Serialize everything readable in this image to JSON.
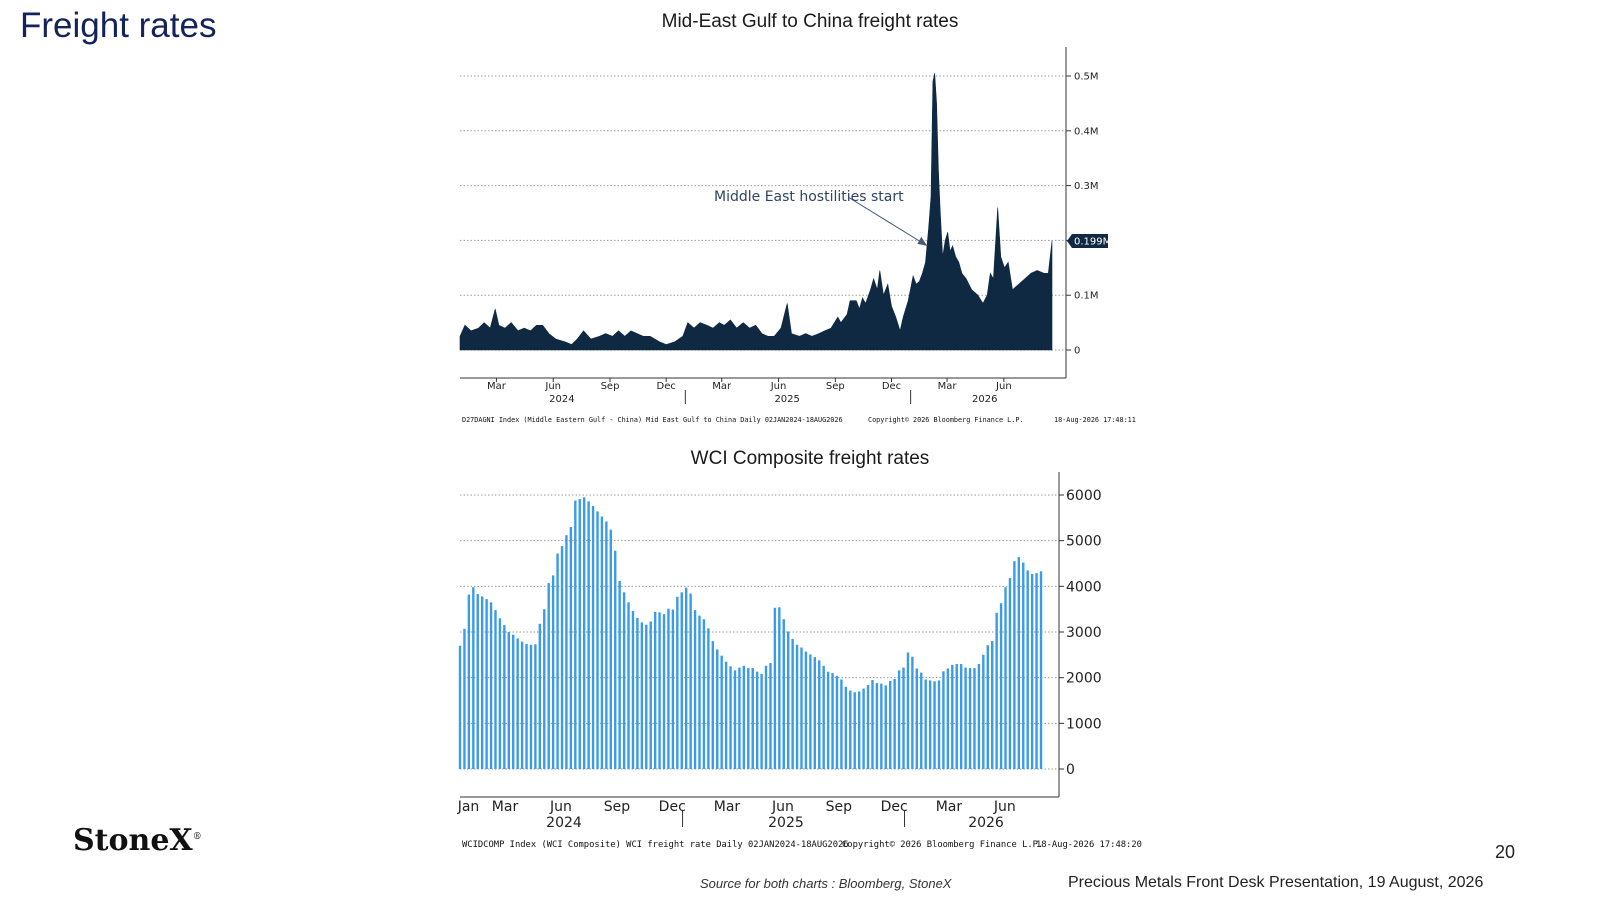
{
  "page": {
    "title": "Freight rates",
    "page_number": "20",
    "source_note": "Source for both charts : Bloomberg, StoneX",
    "footer": "Precious Metals Front Desk Presentation, 19 August, 2026",
    "logo_text": "StoneX",
    "logo_mark": "®"
  },
  "colors": {
    "title": "#14235c",
    "chart1_area": "#0f2942",
    "chart2_bars": "#3b9be6",
    "grid": "#9a9a9a",
    "annotation": "#4a5a70"
  },
  "chart_data": [
    {
      "type": "area",
      "title": "Mid-East Gulf to China freight rates",
      "xlabel": "",
      "ylabel": "",
      "ylim": [
        0,
        0.5
      ],
      "unit": "M",
      "grid": true,
      "y_axis_side": "right",
      "y_ticks": [
        0,
        0.1,
        0.2,
        0.3,
        0.4,
        0.5
      ],
      "y_tick_labels": [
        "0",
        "0.1M",
        "",
        "0.3M",
        "0.4M",
        "0.5M"
      ],
      "last_value_label": "0.199M",
      "last_value": 0.199,
      "x_range": [
        "2024-01-02",
        "2026-08-18"
      ],
      "x_ticks": [
        {
          "date": "2024-03-01",
          "label": "Mar"
        },
        {
          "date": "2024-06-01",
          "label": "Jun"
        },
        {
          "date": "2024-09-01",
          "label": "Sep"
        },
        {
          "date": "2024-12-01",
          "label": "Dec"
        },
        {
          "date": "2025-03-01",
          "label": "Mar"
        },
        {
          "date": "2025-06-01",
          "label": "Jun"
        },
        {
          "date": "2025-09-01",
          "label": "Sep"
        },
        {
          "date": "2025-12-01",
          "label": "Dec"
        },
        {
          "date": "2026-03-01",
          "label": "Mar"
        },
        {
          "date": "2026-06-01",
          "label": "Jun"
        }
      ],
      "year_labels": [
        {
          "date": "2024-06-15",
          "label": "2024"
        },
        {
          "date": "2025-06-15",
          "label": "2025"
        },
        {
          "date": "2026-05-01",
          "label": "2026"
        }
      ],
      "year_separators": [
        "2025-01-01",
        "2026-01-01"
      ],
      "points": [
        [
          "2024-01-02",
          0.025
        ],
        [
          "2024-01-10",
          0.045
        ],
        [
          "2024-01-20",
          0.035
        ],
        [
          "2024-02-01",
          0.04
        ],
        [
          "2024-02-10",
          0.05
        ],
        [
          "2024-02-20",
          0.04
        ],
        [
          "2024-02-28",
          0.075
        ],
        [
          "2024-03-05",
          0.045
        ],
        [
          "2024-03-15",
          0.04
        ],
        [
          "2024-03-25",
          0.05
        ],
        [
          "2024-04-05",
          0.035
        ],
        [
          "2024-04-15",
          0.04
        ],
        [
          "2024-04-25",
          0.035
        ],
        [
          "2024-05-05",
          0.045
        ],
        [
          "2024-05-15",
          0.045
        ],
        [
          "2024-05-25",
          0.03
        ],
        [
          "2024-06-05",
          0.02
        ],
        [
          "2024-06-20",
          0.015
        ],
        [
          "2024-07-01",
          0.01
        ],
        [
          "2024-07-10",
          0.02
        ],
        [
          "2024-07-20",
          0.035
        ],
        [
          "2024-08-01",
          0.02
        ],
        [
          "2024-08-15",
          0.025
        ],
        [
          "2024-08-25",
          0.03
        ],
        [
          "2024-09-05",
          0.025
        ],
        [
          "2024-09-15",
          0.035
        ],
        [
          "2024-09-25",
          0.025
        ],
        [
          "2024-10-05",
          0.035
        ],
        [
          "2024-10-15",
          0.03
        ],
        [
          "2024-10-25",
          0.025
        ],
        [
          "2024-11-05",
          0.025
        ],
        [
          "2024-11-20",
          0.015
        ],
        [
          "2024-12-01",
          0.01
        ],
        [
          "2024-12-15",
          0.015
        ],
        [
          "2024-12-28",
          0.025
        ],
        [
          "2025-01-05",
          0.05
        ],
        [
          "2025-01-15",
          0.04
        ],
        [
          "2025-01-25",
          0.05
        ],
        [
          "2025-02-05",
          0.045
        ],
        [
          "2025-02-15",
          0.04
        ],
        [
          "2025-02-25",
          0.05
        ],
        [
          "2025-03-05",
          0.045
        ],
        [
          "2025-03-15",
          0.055
        ],
        [
          "2025-03-25",
          0.04
        ],
        [
          "2025-04-05",
          0.05
        ],
        [
          "2025-04-15",
          0.04
        ],
        [
          "2025-04-25",
          0.045
        ],
        [
          "2025-05-05",
          0.03
        ],
        [
          "2025-05-15",
          0.025
        ],
        [
          "2025-05-25",
          0.025
        ],
        [
          "2025-06-05",
          0.04
        ],
        [
          "2025-06-15",
          0.085
        ],
        [
          "2025-06-22",
          0.03
        ],
        [
          "2025-07-05",
          0.025
        ],
        [
          "2025-07-15",
          0.03
        ],
        [
          "2025-07-25",
          0.025
        ],
        [
          "2025-08-05",
          0.03
        ],
        [
          "2025-08-15",
          0.035
        ],
        [
          "2025-08-25",
          0.04
        ],
        [
          "2025-09-05",
          0.06
        ],
        [
          "2025-09-10",
          0.05
        ],
        [
          "2025-09-20",
          0.065
        ],
        [
          "2025-09-25",
          0.09
        ],
        [
          "2025-10-05",
          0.09
        ],
        [
          "2025-10-10",
          0.075
        ],
        [
          "2025-10-15",
          0.095
        ],
        [
          "2025-10-20",
          0.085
        ],
        [
          "2025-10-28",
          0.11
        ],
        [
          "2025-11-02",
          0.13
        ],
        [
          "2025-11-08",
          0.11
        ],
        [
          "2025-11-12",
          0.145
        ],
        [
          "2025-11-18",
          0.1
        ],
        [
          "2025-11-25",
          0.12
        ],
        [
          "2025-12-01",
          0.08
        ],
        [
          "2025-12-08",
          0.06
        ],
        [
          "2025-12-15",
          0.035
        ],
        [
          "2025-12-20",
          0.06
        ],
        [
          "2025-12-28",
          0.09
        ],
        [
          "2026-01-05",
          0.135
        ],
        [
          "2026-01-10",
          0.12
        ],
        [
          "2026-01-15",
          0.125
        ],
        [
          "2026-01-20",
          0.14
        ],
        [
          "2026-01-25",
          0.16
        ],
        [
          "2026-01-30",
          0.22
        ],
        [
          "2026-02-03",
          0.28
        ],
        [
          "2026-02-06",
          0.49
        ],
        [
          "2026-02-09",
          0.505
        ],
        [
          "2026-02-12",
          0.45
        ],
        [
          "2026-02-15",
          0.33
        ],
        [
          "2026-02-18",
          0.25
        ],
        [
          "2026-02-22",
          0.17
        ],
        [
          "2026-02-26",
          0.2
        ],
        [
          "2026-03-02",
          0.215
        ],
        [
          "2026-03-06",
          0.18
        ],
        [
          "2026-03-10",
          0.19
        ],
        [
          "2026-03-15",
          0.17
        ],
        [
          "2026-03-20",
          0.16
        ],
        [
          "2026-03-25",
          0.14
        ],
        [
          "2026-04-01",
          0.13
        ],
        [
          "2026-04-10",
          0.11
        ],
        [
          "2026-04-20",
          0.1
        ],
        [
          "2026-04-28",
          0.085
        ],
        [
          "2026-05-05",
          0.1
        ],
        [
          "2026-05-10",
          0.14
        ],
        [
          "2026-05-15",
          0.13
        ],
        [
          "2026-05-22",
          0.26
        ],
        [
          "2026-05-27",
          0.17
        ],
        [
          "2026-06-02",
          0.15
        ],
        [
          "2026-06-08",
          0.16
        ],
        [
          "2026-06-15",
          0.11
        ],
        [
          "2026-06-25",
          0.12
        ],
        [
          "2026-07-05",
          0.13
        ],
        [
          "2026-07-15",
          0.14
        ],
        [
          "2026-07-25",
          0.145
        ],
        [
          "2026-08-05",
          0.14
        ],
        [
          "2026-08-12",
          0.14
        ],
        [
          "2026-08-18",
          0.199
        ]
      ],
      "annotation": {
        "text": "Middle East hostilities start",
        "points_to": [
          "2026-01-28",
          0.19
        ]
      },
      "footer_left": "D27DAGNI Index (Middle Eastern Gulf - China) Mid East Gulf to China Daily 02JAN2024-18AUG2026",
      "footer_center": "Copyright© 2026 Bloomberg Finance L.P.",
      "footer_right": "18-Aug-2026 17:48:11"
    },
    {
      "type": "bar",
      "title": "WCI Composite freight rates",
      "xlabel": "",
      "ylabel": "",
      "ylim": [
        0,
        6500
      ],
      "grid": true,
      "y_axis_side": "right",
      "y_ticks": [
        0,
        1000,
        2000,
        3000,
        4000,
        5000,
        6000
      ],
      "y_tick_labels": [
        "0",
        "1000",
        "2000",
        "3000",
        "4000",
        "5000",
        "6000"
      ],
      "x_range": [
        "2024-01-01",
        "2026-08-20"
      ],
      "x_ticks": [
        {
          "date": "2024-01-15",
          "label": "Jan"
        },
        {
          "date": "2024-03-15",
          "label": "Mar"
        },
        {
          "date": "2024-06-15",
          "label": "Jun"
        },
        {
          "date": "2024-09-15",
          "label": "Sep"
        },
        {
          "date": "2024-12-15",
          "label": "Dec"
        },
        {
          "date": "2025-03-15",
          "label": "Mar"
        },
        {
          "date": "2025-06-15",
          "label": "Jun"
        },
        {
          "date": "2025-09-15",
          "label": "Sep"
        },
        {
          "date": "2025-12-15",
          "label": "Dec"
        },
        {
          "date": "2026-03-15",
          "label": "Mar"
        },
        {
          "date": "2026-06-15",
          "label": "Jun"
        }
      ],
      "year_labels": [
        {
          "date": "2024-06-20",
          "label": "2024"
        },
        {
          "date": "2025-06-20",
          "label": "2025"
        },
        {
          "date": "2026-05-15",
          "label": "2026"
        }
      ],
      "year_separators": [
        "2025-01-01",
        "2026-01-01"
      ],
      "series": [
        {
          "values": [
            2700,
            3070,
            3820,
            3980,
            3830,
            3780,
            3720,
            3650,
            3480,
            3300,
            3150,
            3000,
            2940,
            2860,
            2790,
            2740,
            2720,
            2730,
            3180,
            3500,
            4070,
            4240,
            4720,
            4880,
            5120,
            5300,
            5880,
            5910,
            5950,
            5860,
            5760,
            5640,
            5530,
            5420,
            5240,
            4780,
            4120,
            3870,
            3650,
            3460,
            3310,
            3210,
            3160,
            3230,
            3440,
            3430,
            3390,
            3510,
            3490,
            3770,
            3870,
            3970,
            3840,
            3480,
            3360,
            3280,
            3080,
            2800,
            2620,
            2480,
            2350,
            2250,
            2160,
            2220,
            2260,
            2210,
            2210,
            2130,
            2080,
            2260,
            2320,
            3530,
            3540,
            3280,
            3010,
            2850,
            2720,
            2660,
            2570,
            2510,
            2450,
            2380,
            2260,
            2130,
            2100,
            2040,
            1960,
            1800,
            1720,
            1680,
            1700,
            1760,
            1840,
            1950,
            1880,
            1870,
            1830,
            1930,
            1970,
            2160,
            2220,
            2550,
            2460,
            2200,
            2110,
            1960,
            1940,
            1920,
            1940,
            2140,
            2200,
            2280,
            2300,
            2300,
            2220,
            2210,
            2210,
            2300,
            2500,
            2710,
            2800,
            3420,
            3630,
            3980,
            4180,
            4550,
            4640,
            4520,
            4350,
            4270,
            4290,
            4330
          ]
        }
      ],
      "footer_left": "WCIDCOMP Index (WCI Composite) WCI freight rate Daily 02JAN2024-18AUG2026",
      "footer_center": "Copyright© 2026 Bloomberg Finance L.P.",
      "footer_right": "18-Aug-2026 17:48:20"
    }
  ]
}
